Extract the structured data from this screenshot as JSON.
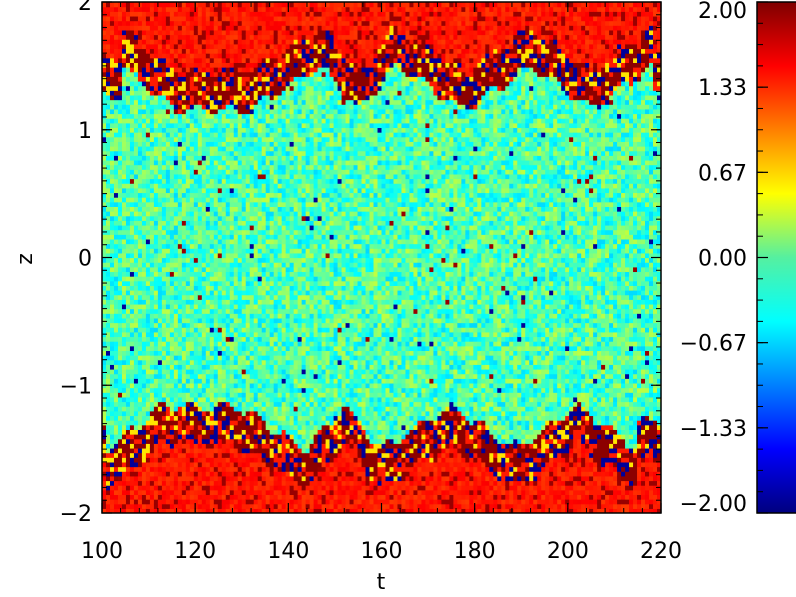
{
  "chart_data": {
    "type": "heatmap",
    "xlabel": "t",
    "ylabel": "z",
    "xlim": [
      100,
      220
    ],
    "ylim": [
      -2,
      2
    ],
    "x_ticks": [
      "100",
      "120",
      "140",
      "160",
      "180",
      "200",
      "220"
    ],
    "y_ticks": [
      "2",
      "1",
      "0",
      "−1",
      "−2"
    ],
    "colorbar": {
      "range": [
        -2.0,
        2.0
      ],
      "ticks": [
        "2.00",
        "1.33",
        "0.67",
        "0.00",
        "−0.67",
        "−1.33",
        "−2.00"
      ],
      "colormap": "jet"
    },
    "pattern": {
      "description_regions": [
        {
          "region": "outer layers |z| > ~1.4",
          "dominant_value": 1.4
        },
        {
          "region": "central band |z| < ~1.4",
          "dominant_value": -0.2
        },
        {
          "region": "interface fronts",
          "value_range": [
            -2.0,
            2.0
          ]
        }
      ],
      "front_peaks_t": [
        104,
        147,
        163,
        192,
        218
      ],
      "front_troughs_t": [
        116,
        132,
        155,
        178,
        205
      ]
    },
    "colors": {
      "frame": "#000000",
      "background": "#ffffff"
    }
  }
}
